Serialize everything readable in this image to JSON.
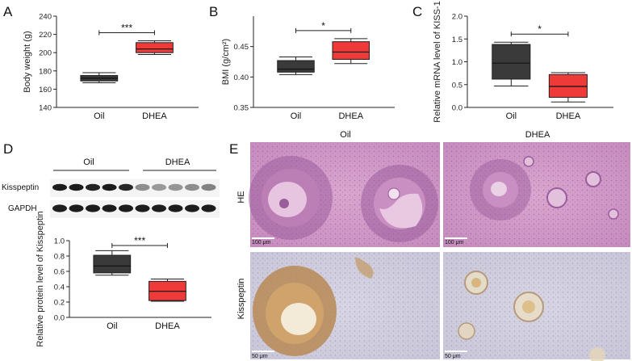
{
  "panels": {
    "A": {
      "label": "A"
    },
    "B": {
      "label": "B"
    },
    "C": {
      "label": "C"
    },
    "D": {
      "label": "D"
    },
    "E": {
      "label": "E"
    }
  },
  "colors": {
    "oil": "#3a3a3a",
    "dhea": "#ee3a38"
  },
  "chart_data": [
    {
      "id": "A",
      "type": "box",
      "ylabel": "Body weight (g)",
      "ylim": [
        140,
        240
      ],
      "yticks": [
        140,
        160,
        180,
        200,
        220,
        240
      ],
      "ytick_labels": [
        "140",
        "160",
        "180",
        "200",
        "220",
        "240"
      ],
      "categories": [
        "Oil",
        "DHEA"
      ],
      "boxes": [
        {
          "min": 167,
          "q1": 169,
          "median": 172,
          "q3": 175,
          "max": 178
        },
        {
          "min": 198,
          "q1": 200,
          "median": 204,
          "q3": 211,
          "max": 213
        }
      ],
      "significance": "***"
    },
    {
      "id": "B",
      "type": "box",
      "ylabel": "BMI (g/cm²)",
      "ylim": [
        0.35,
        0.5
      ],
      "yticks": [
        0.35,
        0.4,
        0.45
      ],
      "ytick_labels": [
        "0.35",
        "0.40",
        "0.45"
      ],
      "categories": [
        "Oil",
        "DHEA"
      ],
      "boxes": [
        {
          "min": 0.404,
          "q1": 0.408,
          "median": 0.413,
          "q3": 0.427,
          "max": 0.433
        },
        {
          "min": 0.422,
          "q1": 0.429,
          "median": 0.441,
          "q3": 0.458,
          "max": 0.463
        }
      ],
      "significance": "*"
    },
    {
      "id": "C",
      "type": "box",
      "ylabel": "Relative mRNA level of KISS-1",
      "ylim": [
        0,
        2.0
      ],
      "yticks": [
        0,
        0.5,
        1.0,
        1.5,
        2.0
      ],
      "ytick_labels": [
        "0.0",
        "0.5",
        "1.0",
        "1.5",
        "2.0"
      ],
      "categories": [
        "Oil",
        "DHEA"
      ],
      "boxes": [
        {
          "min": 0.47,
          "q1": 0.62,
          "median": 0.97,
          "q3": 1.38,
          "max": 1.43
        },
        {
          "min": 0.12,
          "q1": 0.22,
          "median": 0.46,
          "q3": 0.72,
          "max": 0.76
        }
      ],
      "significance": "*"
    },
    {
      "id": "D",
      "type": "box",
      "ylabel": "Relative protein level of Kisspeptin",
      "ylim": [
        0,
        1.0
      ],
      "yticks": [
        0,
        0.2,
        0.4,
        0.6,
        0.8,
        1.0
      ],
      "ytick_labels": [
        "0.0",
        "0.2",
        "0.4",
        "0.6",
        "0.8",
        "1.0"
      ],
      "categories": [
        "Oil",
        "DHEA"
      ],
      "boxes": [
        {
          "min": 0.55,
          "q1": 0.58,
          "median": 0.67,
          "q3": 0.81,
          "max": 0.87
        },
        {
          "min": 0.21,
          "q1": 0.22,
          "median": 0.34,
          "q3": 0.47,
          "max": 0.5
        }
      ],
      "significance": "***"
    }
  ],
  "western_blot": {
    "group_labels": [
      "Oil",
      "DHEA"
    ],
    "row_labels": [
      "Kisspeptin",
      "GAPDH"
    ],
    "lanes": 10
  },
  "histology": {
    "column_labels": [
      "Oil",
      "DHEA"
    ],
    "row_labels": [
      "HE",
      "Kisspeptin"
    ],
    "scale_bars": [
      "100 μm",
      "100 μm",
      "50 μm",
      "50 μm"
    ]
  }
}
